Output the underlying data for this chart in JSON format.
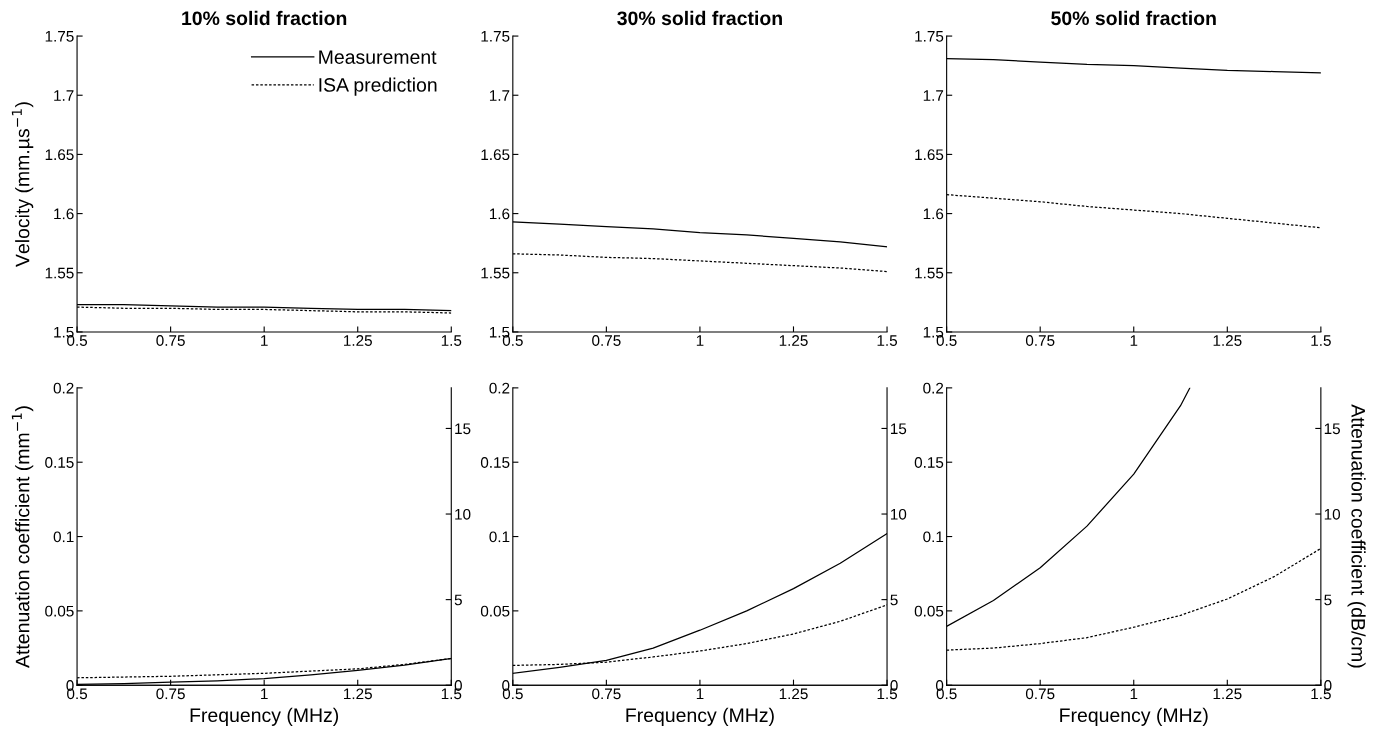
{
  "chart_data": [
    {
      "type": "line",
      "title": "10% solid fraction",
      "ylabel": "Velocity (mm.µs$^{−1}$)",
      "xlim": [
        0.5,
        1.5
      ],
      "xticks": [
        0.5,
        0.75,
        1,
        1.25,
        1.5
      ],
      "ylim": [
        1.5,
        1.75
      ],
      "yticks": [
        1.5,
        1.55,
        1.6,
        1.65,
        1.7,
        1.75
      ],
      "legend": "top right",
      "x": [
        0.5,
        0.625,
        0.75,
        0.875,
        1.0,
        1.125,
        1.25,
        1.375,
        1.5
      ],
      "series": [
        {
          "name": "Measurement",
          "color": "#000000",
          "line_style": "solid",
          "values": [
            1.523,
            1.523,
            1.522,
            1.521,
            1.521,
            1.52,
            1.519,
            1.519,
            1.518
          ]
        },
        {
          "name": "ISA prediction",
          "color": "#000000",
          "line_style": "dotted",
          "values": [
            1.521,
            1.52,
            1.52,
            1.519,
            1.519,
            1.518,
            1.517,
            1.517,
            1.516
          ]
        }
      ]
    },
    {
      "type": "line",
      "title": "30% solid fraction",
      "xlim": [
        0.5,
        1.5
      ],
      "xticks": [
        0.5,
        0.75,
        1,
        1.25,
        1.5
      ],
      "ylim": [
        1.5,
        1.75
      ],
      "yticks": [
        1.5,
        1.55,
        1.6,
        1.65,
        1.7,
        1.75
      ],
      "x": [
        0.5,
        0.625,
        0.75,
        0.875,
        1.0,
        1.125,
        1.25,
        1.375,
        1.5
      ],
      "series": [
        {
          "color": "#000000",
          "line_style": "solid",
          "values": [
            1.593,
            1.591,
            1.589,
            1.587,
            1.584,
            1.582,
            1.579,
            1.576,
            1.572
          ]
        },
        {
          "color": "#000000",
          "line_style": "dotted",
          "values": [
            1.566,
            1.565,
            1.563,
            1.562,
            1.56,
            1.558,
            1.556,
            1.554,
            1.551
          ]
        }
      ]
    },
    {
      "type": "line",
      "title": "50% solid fraction",
      "xlim": [
        0.5,
        1.5
      ],
      "xticks": [
        0.5,
        0.75,
        1,
        1.25,
        1.5
      ],
      "ylim": [
        1.5,
        1.75
      ],
      "yticks": [
        1.5,
        1.55,
        1.6,
        1.65,
        1.7,
        1.75
      ],
      "x": [
        0.5,
        0.625,
        0.75,
        0.875,
        1.0,
        1.125,
        1.25,
        1.375,
        1.5
      ],
      "series": [
        {
          "color": "#000000",
          "line_style": "solid",
          "values": [
            1.731,
            1.73,
            1.728,
            1.726,
            1.725,
            1.723,
            1.721,
            1.72,
            1.719
          ]
        },
        {
          "color": "#000000",
          "line_style": "dotted",
          "values": [
            1.616,
            1.613,
            1.61,
            1.606,
            1.603,
            1.6,
            1.596,
            1.592,
            1.588
          ]
        }
      ]
    },
    {
      "type": "line",
      "xlabel": "Frequency (MHz)",
      "ylabel": "Attenuation coefficient (mm$^{−1}$)",
      "xlim": [
        0.5,
        1.5
      ],
      "xticks": [
        0.5,
        0.75,
        1,
        1.25,
        1.5
      ],
      "ylim": [
        0,
        0.2
      ],
      "yticks": [
        0,
        0.05,
        0.1,
        0.15,
        0.2
      ],
      "y2lim": [
        0,
        17.37
      ],
      "y2ticks": [
        0,
        5,
        10,
        15
      ],
      "x": [
        0.5,
        0.625,
        0.75,
        0.875,
        1.0,
        1.125,
        1.25,
        1.375,
        1.5
      ],
      "series": [
        {
          "color": "#000000",
          "line_style": "solid",
          "values": [
            0.0005,
            0.001,
            0.002,
            0.003,
            0.0045,
            0.007,
            0.01,
            0.0135,
            0.018
          ]
        },
        {
          "color": "#000000",
          "line_style": "dotted",
          "values": [
            0.005,
            0.0055,
            0.006,
            0.007,
            0.008,
            0.0095,
            0.011,
            0.014,
            0.018
          ]
        }
      ]
    },
    {
      "type": "line",
      "xlabel": "Frequency (MHz)",
      "xlim": [
        0.5,
        1.5
      ],
      "xticks": [
        0.5,
        0.75,
        1,
        1.25,
        1.5
      ],
      "ylim": [
        0,
        0.2
      ],
      "yticks": [
        0,
        0.05,
        0.1,
        0.15,
        0.2
      ],
      "y2lim": [
        0,
        17.37
      ],
      "y2ticks": [
        0,
        5,
        10,
        15
      ],
      "x": [
        0.5,
        0.625,
        0.75,
        0.875,
        1.0,
        1.125,
        1.25,
        1.375,
        1.5
      ],
      "series": [
        {
          "color": "#000000",
          "line_style": "solid",
          "values": [
            0.008,
            0.012,
            0.0167,
            0.025,
            0.037,
            0.05,
            0.065,
            0.082,
            0.102
          ]
        },
        {
          "color": "#000000",
          "line_style": "dotted",
          "values": [
            0.0133,
            0.014,
            0.0155,
            0.019,
            0.023,
            0.028,
            0.0345,
            0.043,
            0.054
          ]
        }
      ]
    },
    {
      "type": "line",
      "xlabel": "Frequency (MHz)",
      "y2label": "Attenuation coefficient (dB/cm)",
      "xlim": [
        0.5,
        1.5
      ],
      "xticks": [
        0.5,
        0.75,
        1,
        1.25,
        1.5
      ],
      "ylim": [
        0,
        0.2
      ],
      "yticks": [
        0,
        0.05,
        0.1,
        0.15,
        0.2
      ],
      "y2lim": [
        0,
        17.37
      ],
      "y2ticks": [
        0,
        5,
        10,
        15
      ],
      "x": [
        0.5,
        0.625,
        0.75,
        0.875,
        1.0,
        1.125,
        1.25,
        1.375,
        1.5
      ],
      "series": [
        {
          "color": "#000000",
          "line_style": "solid",
          "x": [
            0.5,
            0.625,
            0.75,
            0.875,
            1.0,
            1.125,
            1.15
          ],
          "values": [
            0.0396,
            0.057,
            0.079,
            0.107,
            0.142,
            0.188,
            0.2
          ]
        },
        {
          "color": "#000000",
          "line_style": "dotted",
          "values": [
            0.0236,
            0.025,
            0.028,
            0.032,
            0.039,
            0.047,
            0.058,
            0.073,
            0.092
          ]
        }
      ]
    }
  ]
}
